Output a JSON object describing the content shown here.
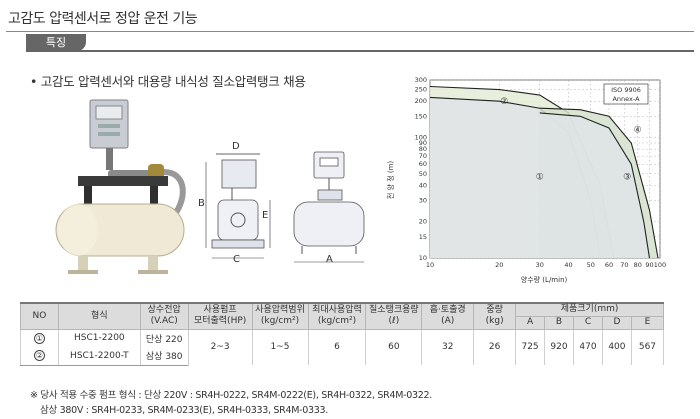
{
  "page_title": "고감도 압력센서로 정압 운전 기능",
  "section_tab": "특징",
  "feature_bullet": "• 고감도 압력센서와 대용량 내식성 질소압력탱크 채용",
  "dimension_letters": {
    "a": "A",
    "b": "B",
    "c": "C",
    "d": "D",
    "e": "E"
  },
  "chart": {
    "y_ticks": [
      "300",
      "250",
      "200",
      "150",
      "100",
      "90",
      "80",
      "70",
      "60",
      "50",
      "40",
      "30",
      "20",
      "15",
      "10"
    ],
    "x_ticks": [
      "10",
      "20",
      "30",
      "40",
      "50",
      "60",
      "70",
      "80",
      "90",
      "100"
    ],
    "ylabel": "전 양 정 (m)",
    "xlabel": "양수량 (L/min)",
    "standard_line1": "ISO 9906",
    "standard_line2": "Annex-A",
    "region_labels": [
      "①",
      "②",
      "③",
      "④"
    ]
  },
  "chart_data": {
    "type": "area",
    "xlabel": "양수량 (L/min)",
    "ylabel": "전 양 정 (m)",
    "x_scale": "log",
    "y_scale": "log",
    "xlim": [
      10,
      100
    ],
    "ylim": [
      10,
      300
    ],
    "grid": true,
    "annotations": [
      "ISO 9906",
      "Annex-A"
    ],
    "series": [
      {
        "name": "①",
        "x": [
          10,
          20,
          30,
          40,
          50,
          55
        ],
        "y": [
          215,
          200,
          175,
          110,
          30,
          10
        ]
      },
      {
        "name": "②",
        "x": [
          10,
          20,
          30,
          40,
          55,
          63
        ],
        "y": [
          265,
          250,
          225,
          160,
          40,
          10
        ]
      },
      {
        "name": "③",
        "x": [
          30,
          45,
          60,
          75,
          85,
          90
        ],
        "y": [
          160,
          150,
          120,
          60,
          20,
          10
        ]
      },
      {
        "name": "④",
        "x": [
          30,
          45,
          60,
          75,
          90,
          98
        ],
        "y": [
          175,
          170,
          150,
          90,
          25,
          10
        ]
      }
    ]
  },
  "table": {
    "headers": {
      "no": "NO",
      "model": "형식",
      "power": [
        "상수전압",
        "(V.AC)"
      ],
      "pump": [
        "사용펌프",
        "모터출력(HP)"
      ],
      "pressure_range": [
        "사용압력범위",
        "(kg/cm²)"
      ],
      "max_pressure": [
        "최대사용압력",
        "(kg/cm²)"
      ],
      "tank": [
        "질소탱크용량",
        "(ℓ)"
      ],
      "bore": [
        "흡·토출경",
        "(A)"
      ],
      "weight": [
        "중량",
        "(kg)"
      ],
      "size": "제품크기(mm)",
      "size_cols": [
        "A",
        "B",
        "C",
        "D",
        "E"
      ]
    },
    "rows": [
      {
        "no": "①",
        "model": "HSC1-2200",
        "power": "단상 220"
      },
      {
        "no": "②",
        "model": "HSC1-2200-T",
        "power": "삼상 380"
      }
    ],
    "shared": {
      "pump": "2~3",
      "pressure_range": "1~5",
      "max_pressure": "6",
      "tank": "60",
      "bore": "32",
      "weight": "26",
      "size": [
        "725",
        "920",
        "470",
        "400",
        "567"
      ]
    }
  },
  "notes": [
    "※ 당사 적용 수중 펌프 형식 : 단상 220V : SR4H-0222, SR4M-0222(E), SR4H-0322, SR4M-0322.",
    "삼상 380V : SR4H-0233, SR4M-0233(E), SR4H-0333, SR4M-0333."
  ]
}
